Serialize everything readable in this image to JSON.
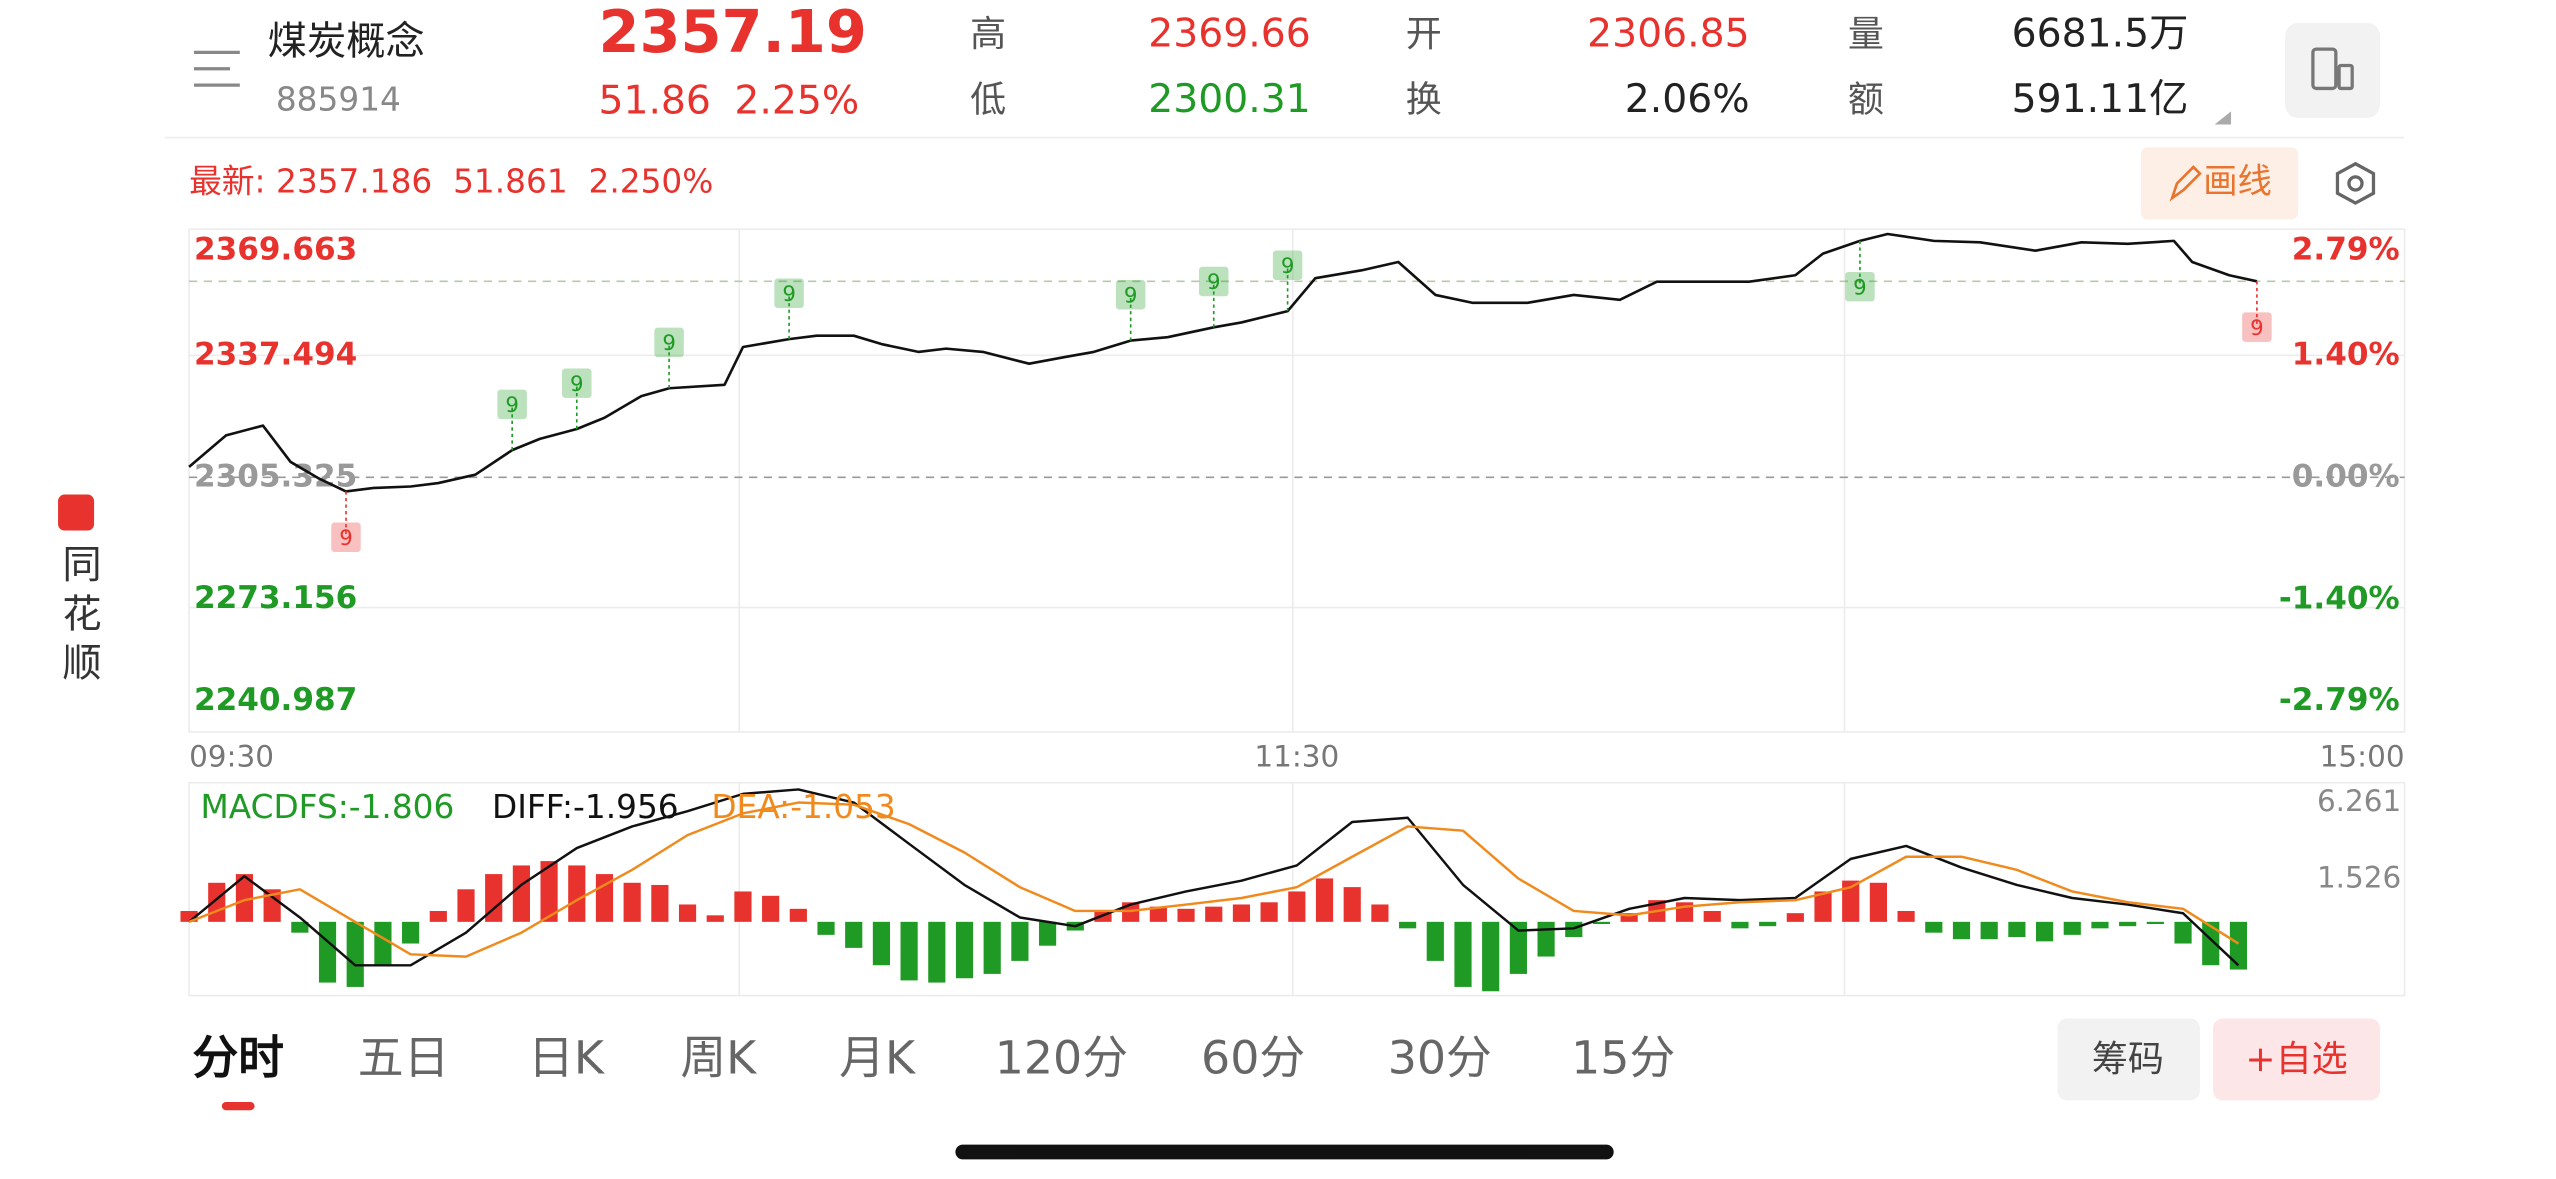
{
  "header": {
    "name": "煤炭概念",
    "code": "885914",
    "price": "2357.19",
    "change": "51.86",
    "change_pct": "2.25%",
    "stats": [
      {
        "label": "高",
        "value": "2369.66",
        "color": "#e8322d"
      },
      {
        "label": "低",
        "value": "2300.31",
        "color": "#1f9a24"
      },
      {
        "label": "开",
        "value": "2306.85",
        "color": "#e8322d"
      },
      {
        "label": "换",
        "value": "2.06%",
        "color": "#222222"
      },
      {
        "label": "量",
        "value": "6681.5万",
        "color": "#222222"
      },
      {
        "label": "额",
        "value": "591.11亿",
        "color": "#222222"
      }
    ]
  },
  "latest": "最新: 2357.186  51.861  2.250%",
  "draw_button": "画线",
  "sidebar": {
    "brand": "同花顺"
  },
  "tabs": [
    "分时",
    "五日",
    "日K",
    "周K",
    "月K",
    "120分",
    "60分",
    "30分",
    "15分"
  ],
  "buttons": [
    "筹码",
    "+自选"
  ],
  "chart_data": [
    {
      "type": "line",
      "color": "#111111",
      "x": [
        0,
        4,
        8,
        11,
        14,
        17,
        20,
        24,
        27,
        31,
        35,
        38,
        42,
        45,
        49,
        52,
        58,
        60,
        65,
        68,
        72,
        75,
        79,
        82,
        86,
        91,
        95,
        98,
        102,
        106,
        111,
        114,
        119,
        122,
        127,
        131,
        135,
        139,
        145,
        150,
        155,
        159,
        164,
        169,
        174,
        177,
        181,
        184,
        189,
        194,
        200,
        205,
        210,
        215,
        217,
        221,
        224
      ],
      "values": [
        2308.1,
        2316.4,
        2319.0,
        2309.4,
        2305.1,
        2301.6,
        2302.5,
        2302.9,
        2303.8,
        2306.0,
        2312.5,
        2315.5,
        2318.1,
        2321.1,
        2326.8,
        2328.9,
        2329.8,
        2339.8,
        2341.9,
        2342.8,
        2342.8,
        2340.6,
        2338.5,
        2339.4,
        2338.5,
        2335.4,
        2337.2,
        2338.5,
        2341.5,
        2342.4,
        2345.0,
        2346.3,
        2349.3,
        2358.0,
        2360.1,
        2362.3,
        2353.6,
        2351.5,
        2351.5,
        2353.6,
        2352.3,
        2357.1,
        2357.1,
        2357.1,
        2358.8,
        2364.5,
        2367.9,
        2369.7,
        2367.9,
        2367.5,
        2365.3,
        2367.5,
        2367.1,
        2367.9,
        2362.3,
        2358.8,
        2357.2
      ],
      "xlim": [
        0,
        240
      ],
      "xticks": [
        {
          "value": 0,
          "label": "09:30"
        },
        {
          "value": 120,
          "label": "11:30"
        },
        {
          "value": 240,
          "label": "15:00"
        }
      ],
      "ylim": [
        2240.987,
        2369.663
      ],
      "yticks": [
        2369.663,
        2337.494,
        2305.325,
        2273.156,
        2240.987
      ],
      "y2lim": [
        -2.79,
        2.79
      ],
      "y2ticks": [
        {
          "value": 2.79,
          "label": "2.79%"
        },
        {
          "value": 1.4,
          "label": "1.40%"
        },
        {
          "value": 0,
          "label": "0.00%"
        },
        {
          "value": -1.4,
          "label": "-1.40%"
        },
        {
          "value": -2.79,
          "label": "-2.79%"
        }
      ],
      "baseline": 2305.325,
      "ref_line": 2357.186,
      "up_color": "#e8322d",
      "down_color": "#1f9a24",
      "markers": [
        {
          "x": 17,
          "value": 2301.6,
          "label": "9",
          "dir": "down",
          "color": "#e8322d"
        },
        {
          "x": 35,
          "value": 2312.5,
          "label": "9",
          "dir": "up",
          "color": "#1f9a24"
        },
        {
          "x": 42,
          "value": 2318.1,
          "label": "9",
          "dir": "up",
          "color": "#1f9a24"
        },
        {
          "x": 52,
          "value": 2328.9,
          "label": "9",
          "dir": "up",
          "color": "#1f9a24"
        },
        {
          "x": 65,
          "value": 2341.9,
          "label": "9",
          "dir": "up",
          "color": "#1f9a24"
        },
        {
          "x": 102,
          "value": 2341.5,
          "label": "9",
          "dir": "up",
          "color": "#1f9a24"
        },
        {
          "x": 111,
          "value": 2345.0,
          "label": "9",
          "dir": "up",
          "color": "#1f9a24"
        },
        {
          "x": 119,
          "value": 2349.3,
          "label": "9",
          "dir": "up",
          "color": "#1f9a24"
        },
        {
          "x": 181,
          "value": 2367.9,
          "label": "9",
          "dir": "down",
          "color": "#1f9a24"
        },
        {
          "x": 224,
          "value": 2357.2,
          "label": "9",
          "dir": "down",
          "color": "#e8322d"
        }
      ]
    },
    {
      "type": "macd",
      "xlim": [
        0,
        240
      ],
      "ylim": [
        -3.4,
        6.261
      ],
      "yticks": [
        6.261,
        1.526
      ],
      "up_color": "#e8322d",
      "down_color": "#1f9a24",
      "series": [
        {
          "name": "MACDFS:-1.806",
          "kind": "bar",
          "color": "#1f9a24",
          "x": [
            0,
            3,
            6,
            9,
            12,
            15,
            18,
            21,
            24,
            27,
            30,
            33,
            36,
            39,
            42,
            45,
            48,
            51,
            54,
            57,
            60,
            63,
            66,
            69,
            72,
            75,
            78,
            81,
            84,
            87,
            90,
            93,
            96,
            99,
            102,
            105,
            108,
            111,
            114,
            117,
            120,
            123,
            126,
            129,
            132,
            135,
            138,
            141,
            144,
            147,
            150,
            153,
            156,
            159,
            162,
            165,
            168,
            171,
            174,
            177,
            180,
            183,
            186,
            189,
            192,
            195,
            198,
            201,
            204,
            207,
            210,
            213,
            216,
            219,
            222
          ],
          "values": [
            0.5,
            1.8,
            2.2,
            1.5,
            -0.5,
            -2.8,
            -3.0,
            -2.0,
            -1.0,
            0.5,
            1.5,
            2.2,
            2.6,
            2.8,
            2.6,
            2.2,
            1.8,
            1.7,
            0.8,
            0.3,
            1.4,
            1.2,
            0.6,
            -0.6,
            -1.2,
            -2.0,
            -2.7,
            -2.8,
            -2.6,
            -2.4,
            -1.8,
            -1.1,
            -0.4,
            0.5,
            0.9,
            0.7,
            0.6,
            0.7,
            0.8,
            0.9,
            1.4,
            2.0,
            1.6,
            0.8,
            -0.3,
            -1.8,
            -3.0,
            -3.2,
            -2.4,
            -1.6,
            -0.7,
            -0.1,
            0.4,
            1.0,
            0.9,
            0.5,
            -0.3,
            -0.2,
            0.4,
            1.4,
            1.9,
            1.8,
            0.5,
            -0.5,
            -0.8,
            -0.8,
            -0.7,
            -0.9,
            -0.6,
            -0.3,
            -0.2,
            -0.1,
            -1.0,
            -2.0,
            -2.2
          ]
        },
        {
          "name": "DIFF:-1.956",
          "kind": "line",
          "color": "#111111",
          "x": [
            0,
            6,
            12,
            18,
            24,
            30,
            36,
            42,
            48,
            54,
            60,
            66,
            72,
            78,
            84,
            90,
            96,
            102,
            108,
            114,
            120,
            126,
            132,
            138,
            144,
            150,
            156,
            162,
            168,
            174,
            180,
            186,
            192,
            198,
            204,
            210,
            216,
            222
          ],
          "values": [
            0,
            2.1,
            0.2,
            -2.0,
            -2.0,
            -0.5,
            1.7,
            3.4,
            4.4,
            5.1,
            5.9,
            6.1,
            5.5,
            3.6,
            1.7,
            0.2,
            -0.2,
            0.8,
            1.4,
            1.9,
            2.6,
            4.6,
            4.8,
            1.7,
            -0.4,
            -0.3,
            0.6,
            1.1,
            1.0,
            1.1,
            2.9,
            3.5,
            2.5,
            1.7,
            1.1,
            0.8,
            0.4,
            -2.0
          ]
        },
        {
          "name": "DEA:-1.053",
          "kind": "line",
          "color": "#f08a1c",
          "x": [
            0,
            6,
            12,
            18,
            24,
            30,
            36,
            42,
            48,
            54,
            60,
            66,
            72,
            78,
            84,
            90,
            96,
            102,
            108,
            114,
            120,
            126,
            132,
            138,
            144,
            150,
            156,
            162,
            168,
            174,
            180,
            186,
            192,
            198,
            204,
            210,
            216,
            222
          ],
          "values": [
            0,
            1.0,
            1.5,
            0,
            -1.5,
            -1.6,
            -0.5,
            1.0,
            2.4,
            4.0,
            5.0,
            5.5,
            5.4,
            4.5,
            3.2,
            1.6,
            0.5,
            0.5,
            0.8,
            1.1,
            1.6,
            3.0,
            4.4,
            4.2,
            2.0,
            0.5,
            0.3,
            0.7,
            0.9,
            1.0,
            1.6,
            3.0,
            3.0,
            2.4,
            1.4,
            0.9,
            0.6,
            -1.0
          ]
        }
      ]
    }
  ]
}
